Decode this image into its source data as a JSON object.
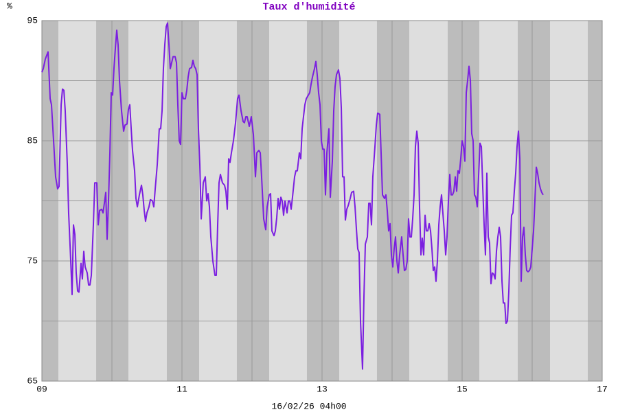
{
  "chart_data": {
    "type": "line",
    "title": "Taux d'humidité",
    "ylabel": "%",
    "xlabel": "16/02/26 04h00",
    "xlim": [
      9,
      17
    ],
    "ylim": [
      65,
      95
    ],
    "xticks": [
      {
        "value": 9,
        "label": "09"
      },
      11,
      13,
      15,
      17
    ],
    "xminor": [
      10,
      12,
      14,
      16
    ],
    "yticks": [
      65,
      75,
      85,
      95
    ],
    "yminor": [
      70,
      80,
      90
    ],
    "grid": true,
    "background": "#dedede",
    "band_color": "#bcbcbc",
    "shaded_bands": [
      [
        9,
        9.235
      ],
      [
        9.775,
        10.235
      ],
      [
        10.784,
        11.245
      ],
      [
        11.784,
        12.245
      ],
      [
        12.784,
        13.245
      ],
      [
        13.784,
        14.245
      ],
      [
        14.794,
        15.245
      ],
      [
        15.794,
        16.255
      ],
      [
        16.794,
        17
      ]
    ],
    "x": [
      9.0,
      9.02,
      9.049,
      9.088,
      9.118,
      9.137,
      9.167,
      9.196,
      9.225,
      9.245,
      9.275,
      9.294,
      9.314,
      9.333,
      9.363,
      9.382,
      9.412,
      9.431,
      9.451,
      9.471,
      9.49,
      9.51,
      9.529,
      9.559,
      9.578,
      9.598,
      9.618,
      9.647,
      9.667,
      9.686,
      9.706,
      9.735,
      9.755,
      9.784,
      9.804,
      9.824,
      9.853,
      9.873,
      9.892,
      9.912,
      9.931,
      9.951,
      9.971,
      9.99,
      10.01,
      10.029,
      10.049,
      10.069,
      10.088,
      10.108,
      10.137,
      10.167,
      10.186,
      10.216,
      10.235,
      10.255,
      10.275,
      10.294,
      10.324,
      10.343,
      10.363,
      10.392,
      10.422,
      10.441,
      10.461,
      10.48,
      10.5,
      10.529,
      10.549,
      10.578,
      10.598,
      10.618,
      10.647,
      10.676,
      10.696,
      10.716,
      10.735,
      10.755,
      10.775,
      10.794,
      10.814,
      10.833,
      10.853,
      10.873,
      10.902,
      10.922,
      10.941,
      10.961,
      10.98,
      11.0,
      11.02,
      11.049,
      11.069,
      11.088,
      11.108,
      11.137,
      11.157,
      11.176,
      11.196,
      11.216,
      11.235,
      11.255,
      11.275,
      11.304,
      11.333,
      11.353,
      11.373,
      11.392,
      11.412,
      11.441,
      11.471,
      11.49,
      11.51,
      11.529,
      11.549,
      11.578,
      11.608,
      11.627,
      11.647,
      11.667,
      11.686,
      11.706,
      11.735,
      11.765,
      11.794,
      11.814,
      11.843,
      11.873,
      11.892,
      11.912,
      11.931,
      11.961,
      11.99,
      12.02,
      12.049,
      12.069,
      12.098,
      12.118,
      12.137,
      12.167,
      12.196,
      12.216,
      12.245,
      12.265,
      12.284,
      12.314,
      12.333,
      12.353,
      12.373,
      12.392,
      12.412,
      12.431,
      12.451,
      12.471,
      12.5,
      12.52,
      12.539,
      12.559,
      12.578,
      12.608,
      12.627,
      12.647,
      12.676,
      12.696,
      12.716,
      12.735,
      12.755,
      12.775,
      12.804,
      12.824,
      12.843,
      12.863,
      12.892,
      12.912,
      12.931,
      12.951,
      12.971,
      12.99,
      13.01,
      13.029,
      13.049,
      13.069,
      13.098,
      13.118,
      13.147,
      13.167,
      13.186,
      13.206,
      13.235,
      13.255,
      13.275,
      13.294,
      13.314,
      13.333,
      13.353,
      13.373,
      13.402,
      13.422,
      13.451,
      13.471,
      13.49,
      13.51,
      13.529,
      13.549,
      13.578,
      13.598,
      13.618,
      13.647,
      13.667,
      13.686,
      13.706,
      13.725,
      13.755,
      13.775,
      13.794,
      13.824,
      13.843,
      13.863,
      13.892,
      13.912,
      13.931,
      13.951,
      13.971,
      13.99,
      14.01,
      14.029,
      14.049,
      14.069,
      14.088,
      14.108,
      14.137,
      14.157,
      14.176,
      14.196,
      14.216,
      14.235,
      14.255,
      14.275,
      14.294,
      14.314,
      14.333,
      14.353,
      14.373,
      14.392,
      14.412,
      14.431,
      14.451,
      14.471,
      14.49,
      14.51,
      14.529,
      14.549,
      14.569,
      14.588,
      14.608,
      14.627,
      14.647,
      14.667,
      14.686,
      14.706,
      14.725,
      14.745,
      14.765,
      14.784,
      14.804,
      14.824,
      14.843,
      14.863,
      14.882,
      14.902,
      14.922,
      14.941,
      14.961,
      14.98,
      15.0,
      15.02,
      15.039,
      15.059,
      15.078,
      15.098,
      15.118,
      15.137,
      15.157,
      15.176,
      15.196,
      15.216,
      15.235,
      15.255,
      15.275,
      15.294,
      15.314,
      15.333,
      15.353,
      15.373,
      15.392,
      15.412,
      15.431,
      15.451,
      15.471,
      15.49,
      15.51,
      15.529,
      15.549,
      15.569,
      15.588,
      15.608,
      15.627,
      15.647,
      15.667,
      15.686,
      15.706,
      15.725,
      15.745,
      15.765,
      15.784,
      15.804,
      15.824,
      15.843,
      15.863,
      15.882,
      15.902,
      15.922,
      15.941,
      15.961,
      15.98,
      16.0,
      16.02,
      16.039,
      16.059,
      16.078,
      16.098,
      16.118,
      16.137,
      16.157
    ],
    "series": [
      {
        "color": "#7b1fe0",
        "values": [
          90.7,
          91,
          91.8,
          92.4,
          88.5,
          88,
          85,
          82,
          81,
          81.2,
          88,
          89.3,
          89.2,
          87.5,
          83,
          79,
          75,
          72.2,
          78,
          77.2,
          74,
          72.5,
          72.4,
          74.8,
          73.5,
          75.8,
          74.5,
          74,
          73,
          73,
          73.8,
          78,
          81.5,
          81.5,
          78,
          79.2,
          79.3,
          79,
          79.8,
          80.7,
          76.8,
          80,
          84,
          89,
          88.8,
          91,
          92.7,
          94.2,
          93,
          90,
          87.5,
          85.8,
          86.3,
          86.4,
          87.6,
          88,
          86,
          84.2,
          82.5,
          80.2,
          79.5,
          80.5,
          81.3,
          80.5,
          79.2,
          78.3,
          79,
          79.5,
          80.1,
          80,
          79.5,
          81,
          83,
          86,
          86,
          87.5,
          91,
          93,
          94.5,
          94.8,
          93,
          91,
          91.5,
          92,
          92,
          91.5,
          88,
          85,
          84.7,
          89,
          88.5,
          88.5,
          89.2,
          90.3,
          91,
          91.1,
          91.7,
          91.2,
          91,
          90.5,
          86,
          83,
          78.5,
          81.5,
          82,
          80,
          80.6,
          79.5,
          77,
          75,
          73.8,
          73.8,
          78,
          81.5,
          82.2,
          81.5,
          81.3,
          80.8,
          79.3,
          83.5,
          83.2,
          84,
          85,
          86.5,
          88.5,
          88.8,
          87.5,
          86.6,
          86.5,
          87,
          87,
          86.2,
          87,
          85.5,
          82,
          84,
          84.2,
          84,
          82,
          78.5,
          77.6,
          79.5,
          80.5,
          80.6,
          77.5,
          77.1,
          77.5,
          78.6,
          80.2,
          79.3,
          80.3,
          80,
          78.8,
          80,
          79,
          80,
          80,
          79.3,
          80.3,
          82,
          82.5,
          82.5,
          84,
          83.5,
          86,
          87,
          88,
          88.5,
          88.8,
          89,
          89.7,
          90.3,
          91,
          91.6,
          90.5,
          89,
          88,
          85,
          84.3,
          84.3,
          80.5,
          84,
          86,
          80.3,
          83.3,
          87.5,
          89.5,
          90.5,
          90.9,
          90.2,
          87.7,
          82,
          82,
          78.4,
          79.3,
          79.6,
          80.2,
          80.7,
          80.8,
          79.5,
          77.7,
          76,
          75.7,
          70,
          66,
          72,
          76.4,
          77,
          79.8,
          79.8,
          78,
          82,
          84.5,
          86.3,
          87.3,
          87.2,
          84,
          80.5,
          80.2,
          80.5,
          79.2,
          77.5,
          78.1,
          75.5,
          74.5,
          76,
          77,
          75,
          74,
          75.5,
          77,
          75.5,
          74.2,
          74.3,
          75,
          78.5,
          77,
          77,
          78.5,
          80.5,
          84.5,
          85.8,
          84.8,
          79.5,
          75.5,
          76.9,
          75.5,
          78.8,
          77.5,
          77.5,
          78.1,
          77.5,
          76,
          74.2,
          74.5,
          73.3,
          75,
          78,
          79.5,
          80.5,
          79,
          77.5,
          75.5,
          77,
          80,
          82.2,
          80.5,
          80.5,
          80.8,
          82,
          80.8,
          82.5,
          82.3,
          83.5,
          85,
          84.5,
          83.3,
          89,
          90,
          91.2,
          90,
          85.6,
          85,
          80.5,
          80.3,
          79.5,
          82,
          84.8,
          84.5,
          81.2,
          78,
          75.5,
          82.3,
          77,
          76.5,
          73.1,
          74,
          73.9,
          73.5,
          75.8,
          77,
          77.8,
          77,
          73.3,
          71.5,
          71.5,
          69.8,
          70,
          72.5,
          76,
          78.8,
          79,
          80.8,
          82.3,
          84.5,
          85.8,
          83.5,
          73.3,
          77,
          77.8,
          75.5,
          74.2,
          74.1,
          74.2,
          74.5,
          76,
          77.5,
          80,
          82.8,
          82.3,
          81.5,
          81,
          80.7,
          80.5
        ]
      }
    ]
  }
}
